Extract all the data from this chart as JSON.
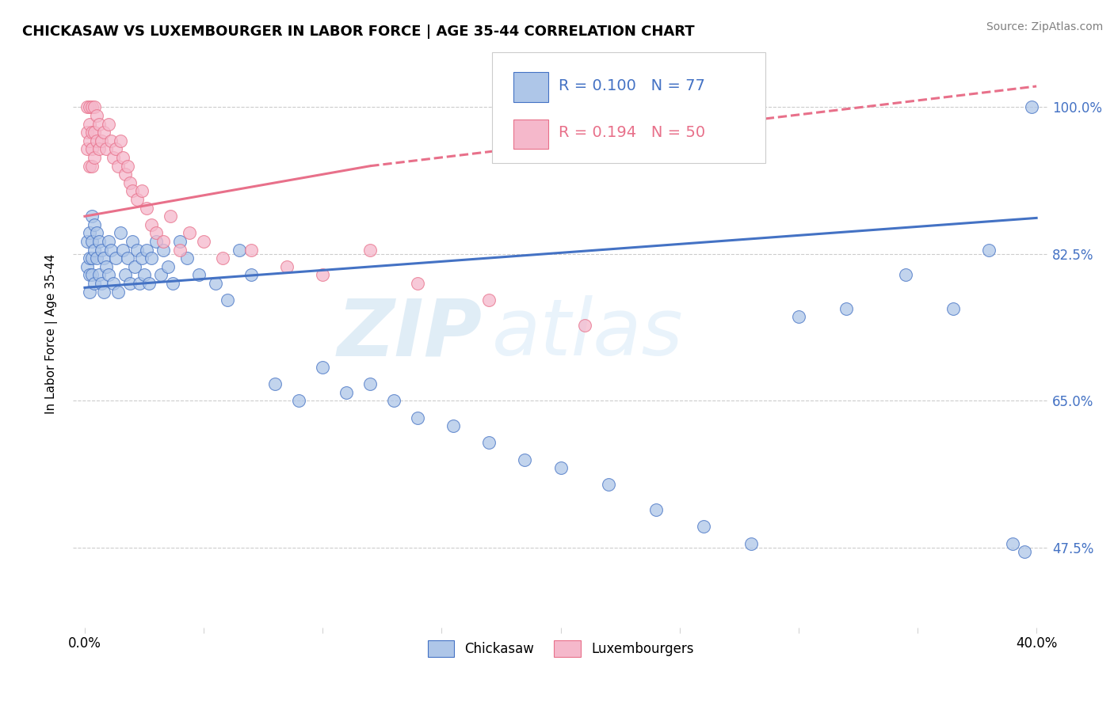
{
  "title": "CHICKASAW VS LUXEMBOURGER IN LABOR FORCE | AGE 35-44 CORRELATION CHART",
  "source": "Source: ZipAtlas.com",
  "ylabel": "In Labor Force | Age 35-44",
  "xlim": [
    -0.005,
    0.405
  ],
  "ylim": [
    0.38,
    1.08
  ],
  "yticks": [
    0.475,
    0.65,
    0.825,
    1.0
  ],
  "ytick_labels": [
    "47.5%",
    "65.0%",
    "82.5%",
    "100.0%"
  ],
  "xticks": [
    0.0,
    0.05,
    0.1,
    0.15,
    0.2,
    0.25,
    0.3,
    0.35,
    0.4
  ],
  "xtick_labels": [
    "0.0%",
    "",
    "",
    "",
    "",
    "",
    "",
    "",
    "40.0%"
  ],
  "chickasaw_color": "#aec6e8",
  "luxembourger_color": "#f5b8cb",
  "chickasaw_line_color": "#4472c4",
  "luxembourger_line_color": "#e8708a",
  "R_chickasaw": 0.1,
  "N_chickasaw": 77,
  "R_luxembourger": 0.194,
  "N_luxembourger": 50,
  "watermark_zip": "ZIP",
  "watermark_atlas": "atlas",
  "legend_label_chickasaw": "Chickasaw",
  "legend_label_luxembourger": "Luxembourgers",
  "chickasaw_x": [
    0.001,
    0.001,
    0.002,
    0.002,
    0.002,
    0.002,
    0.003,
    0.003,
    0.003,
    0.003,
    0.004,
    0.004,
    0.004,
    0.005,
    0.005,
    0.006,
    0.006,
    0.007,
    0.007,
    0.008,
    0.008,
    0.009,
    0.01,
    0.01,
    0.011,
    0.012,
    0.013,
    0.014,
    0.015,
    0.016,
    0.017,
    0.018,
    0.019,
    0.02,
    0.021,
    0.022,
    0.023,
    0.024,
    0.025,
    0.026,
    0.027,
    0.028,
    0.03,
    0.032,
    0.033,
    0.035,
    0.037,
    0.04,
    0.043,
    0.048,
    0.055,
    0.06,
    0.065,
    0.07,
    0.08,
    0.09,
    0.1,
    0.11,
    0.12,
    0.13,
    0.14,
    0.155,
    0.17,
    0.185,
    0.2,
    0.22,
    0.24,
    0.26,
    0.28,
    0.3,
    0.32,
    0.345,
    0.365,
    0.38,
    0.39,
    0.395,
    0.398
  ],
  "chickasaw_y": [
    0.84,
    0.81,
    0.85,
    0.82,
    0.8,
    0.78,
    0.87,
    0.84,
    0.82,
    0.8,
    0.86,
    0.83,
    0.79,
    0.85,
    0.82,
    0.84,
    0.8,
    0.83,
    0.79,
    0.82,
    0.78,
    0.81,
    0.84,
    0.8,
    0.83,
    0.79,
    0.82,
    0.78,
    0.85,
    0.83,
    0.8,
    0.82,
    0.79,
    0.84,
    0.81,
    0.83,
    0.79,
    0.82,
    0.8,
    0.83,
    0.79,
    0.82,
    0.84,
    0.8,
    0.83,
    0.81,
    0.79,
    0.84,
    0.82,
    0.8,
    0.79,
    0.77,
    0.83,
    0.8,
    0.67,
    0.65,
    0.69,
    0.66,
    0.67,
    0.65,
    0.63,
    0.62,
    0.6,
    0.58,
    0.57,
    0.55,
    0.52,
    0.5,
    0.48,
    0.75,
    0.76,
    0.8,
    0.76,
    0.83,
    0.48,
    0.47,
    1.0
  ],
  "luxembourger_x": [
    0.001,
    0.001,
    0.001,
    0.002,
    0.002,
    0.002,
    0.002,
    0.003,
    0.003,
    0.003,
    0.003,
    0.004,
    0.004,
    0.004,
    0.005,
    0.005,
    0.006,
    0.006,
    0.007,
    0.008,
    0.009,
    0.01,
    0.011,
    0.012,
    0.013,
    0.014,
    0.015,
    0.016,
    0.017,
    0.018,
    0.019,
    0.02,
    0.022,
    0.024,
    0.026,
    0.028,
    0.03,
    0.033,
    0.036,
    0.04,
    0.044,
    0.05,
    0.058,
    0.07,
    0.085,
    0.1,
    0.12,
    0.14,
    0.17,
    0.21
  ],
  "luxembourger_y": [
    1.0,
    0.97,
    0.95,
    1.0,
    0.98,
    0.96,
    0.93,
    1.0,
    0.97,
    0.95,
    0.93,
    1.0,
    0.97,
    0.94,
    0.99,
    0.96,
    0.98,
    0.95,
    0.96,
    0.97,
    0.95,
    0.98,
    0.96,
    0.94,
    0.95,
    0.93,
    0.96,
    0.94,
    0.92,
    0.93,
    0.91,
    0.9,
    0.89,
    0.9,
    0.88,
    0.86,
    0.85,
    0.84,
    0.87,
    0.83,
    0.85,
    0.84,
    0.82,
    0.83,
    0.81,
    0.8,
    0.83,
    0.79,
    0.77,
    0.74
  ],
  "regression_chickasaw_x0": 0.0,
  "regression_chickasaw_y0": 0.785,
  "regression_chickasaw_x1": 0.4,
  "regression_chickasaw_y1": 0.868,
  "regression_luxembourger_x0": 0.0,
  "regression_luxembourger_y0": 0.87,
  "regression_luxembourger_x1": 0.12,
  "regression_luxembourger_y1": 0.93,
  "regression_luxembourger_dash_x1": 0.4,
  "regression_luxembourger_dash_y1": 1.025
}
